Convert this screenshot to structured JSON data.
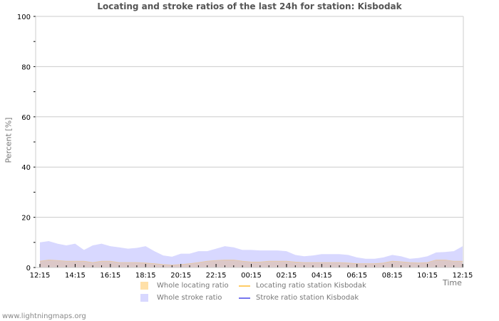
{
  "chart_data": {
    "type": "area",
    "title": "Locating and stroke ratios of the last 24h for station: Kisbodak",
    "xlabel": "Time",
    "ylabel": "Percent   [%]",
    "ylim": [
      0,
      100
    ],
    "yticks": [
      0,
      20,
      40,
      60,
      80,
      100
    ],
    "xticks": [
      "12:15",
      "14:15",
      "16:15",
      "18:15",
      "20:15",
      "22:15",
      "00:15",
      "02:15",
      "04:15",
      "06:15",
      "08:15",
      "10:15",
      "12:15"
    ],
    "grid": true,
    "legend_position": "bottom",
    "x": [
      "12:15",
      "12:45",
      "13:15",
      "13:45",
      "14:15",
      "14:45",
      "15:15",
      "15:45",
      "16:15",
      "16:45",
      "17:15",
      "17:45",
      "18:15",
      "18:45",
      "19:15",
      "19:45",
      "20:15",
      "20:45",
      "21:15",
      "21:45",
      "22:15",
      "22:45",
      "23:15",
      "23:45",
      "00:15",
      "00:45",
      "01:15",
      "01:45",
      "02:15",
      "02:45",
      "03:15",
      "03:45",
      "04:15",
      "04:45",
      "05:15",
      "05:45",
      "06:15",
      "06:45",
      "07:15",
      "07:45",
      "08:15",
      "08:45",
      "09:15",
      "09:45",
      "10:15",
      "10:45",
      "11:15",
      "11:45",
      "12:15"
    ],
    "series": [
      {
        "name": "Whole stroke ratio",
        "color": "#d8d8ff",
        "values": [
          10.0,
          10.5,
          9.5,
          8.8,
          9.5,
          7.0,
          8.8,
          9.5,
          8.5,
          8.0,
          7.5,
          7.8,
          8.5,
          6.5,
          4.8,
          4.3,
          5.5,
          5.5,
          6.5,
          6.5,
          7.5,
          8.5,
          8.0,
          7.0,
          7.0,
          6.8,
          6.8,
          6.8,
          6.5,
          5.0,
          4.5,
          4.8,
          5.3,
          5.3,
          5.3,
          5.0,
          4.0,
          3.5,
          3.5,
          4.0,
          5.0,
          4.5,
          3.5,
          3.8,
          4.5,
          6.0,
          6.2,
          6.5,
          8.5
        ]
      },
      {
        "name": "Whole locating ratio",
        "color": "#ffe0a8",
        "values": [
          2.5,
          3.0,
          2.8,
          2.5,
          2.5,
          2.5,
          2.0,
          2.5,
          2.5,
          2.0,
          2.0,
          2.0,
          1.8,
          1.5,
          1.2,
          1.0,
          1.2,
          1.5,
          2.0,
          2.5,
          2.8,
          3.0,
          3.0,
          2.5,
          2.2,
          2.2,
          2.5,
          2.5,
          2.5,
          2.2,
          2.0,
          2.0,
          2.0,
          2.0,
          2.0,
          1.8,
          1.5,
          1.5,
          1.5,
          1.8,
          2.5,
          2.3,
          2.0,
          1.8,
          2.0,
          3.0,
          3.0,
          2.5,
          2.5
        ]
      },
      {
        "name": "Locating ratio station Kisbodak",
        "color": "#ffcc66",
        "values": []
      },
      {
        "name": "Stroke ratio station Kisbodak",
        "color": "#7777ee",
        "values": []
      }
    ]
  },
  "title": "Locating and stroke ratios of the last 24h for station: Kisbodak",
  "axes": {
    "ylabel": "Percent   [%]",
    "xlabel": "Time"
  },
  "legend": {
    "whole_locating": "Whole locating ratio",
    "whole_stroke": "Whole stroke ratio",
    "station_locating": "Locating ratio station Kisbodak",
    "station_stroke": "Stroke ratio station Kisbodak"
  },
  "colors": {
    "whole_stroke_fill": "#d8d8ff",
    "whole_locating_fill": "#dcc8c8",
    "whole_locating_swatch": "#ffe0a8",
    "station_locating_line": "#ffcc66",
    "station_stroke_line": "#7777ee",
    "grid": "#cccccc"
  },
  "footer": "www.lightningmaps.org"
}
